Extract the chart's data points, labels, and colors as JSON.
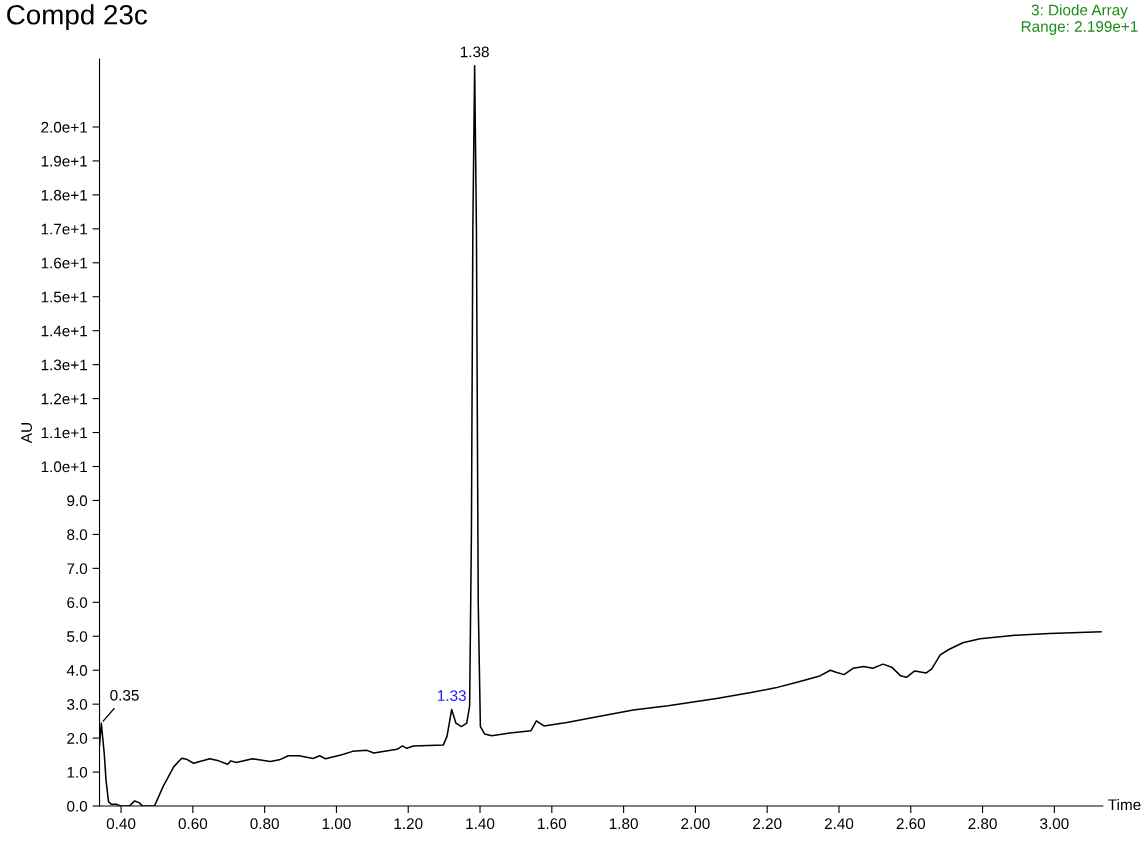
{
  "chart_data": {
    "type": "line",
    "title": "Compd 23c",
    "subtitle": "3: Diode Array\nRange: 2.199e+1",
    "xlabel": "Time",
    "ylabel": "AU",
    "series": [
      {
        "color": "#000000",
        "x": [
          0.34,
          0.345,
          0.353,
          0.358,
          0.365,
          0.373,
          0.388,
          0.398,
          0.423,
          0.438,
          0.45,
          0.46,
          0.493,
          0.517,
          0.547,
          0.569,
          0.582,
          0.602,
          0.647,
          0.672,
          0.697,
          0.706,
          0.721,
          0.766,
          0.816,
          0.841,
          0.866,
          0.896,
          0.935,
          0.953,
          0.97,
          1.015,
          1.045,
          1.085,
          1.104,
          1.169,
          1.184,
          1.196,
          1.214,
          1.298,
          1.308,
          1.321,
          1.333,
          1.348,
          1.363,
          1.371,
          1.376,
          1.38,
          1.385,
          1.39,
          1.395,
          1.401,
          1.413,
          1.433,
          1.483,
          1.542,
          1.557,
          1.578,
          1.642,
          1.73,
          1.827,
          1.924,
          2.059,
          2.155,
          2.223,
          2.291,
          2.344,
          2.376,
          2.392,
          2.414,
          2.44,
          2.469,
          2.494,
          2.523,
          2.547,
          2.571,
          2.588,
          2.611,
          2.643,
          2.658,
          2.682,
          2.706,
          2.745,
          2.793,
          2.89,
          2.986,
          3.13
        ],
        "values": [
          1.8,
          2.44,
          1.56,
          0.77,
          0.13,
          0.05,
          0.05,
          0,
          0,
          0.15,
          0.1,
          0,
          0,
          0.57,
          1.16,
          1.41,
          1.38,
          1.26,
          1.39,
          1.33,
          1.23,
          1.33,
          1.28,
          1.39,
          1.31,
          1.36,
          1.48,
          1.48,
          1.4,
          1.48,
          1.39,
          1.51,
          1.61,
          1.64,
          1.56,
          1.67,
          1.77,
          1.7,
          1.77,
          1.8,
          2.05,
          2.84,
          2.44,
          2.34,
          2.44,
          2.94,
          8.0,
          17.0,
          21.8,
          17.0,
          6.0,
          2.34,
          2.12,
          2.07,
          2.15,
          2.22,
          2.51,
          2.36,
          2.46,
          2.64,
          2.83,
          2.95,
          3.17,
          3.34,
          3.48,
          3.67,
          3.82,
          4.0,
          3.94,
          3.87,
          4.06,
          4.11,
          4.06,
          4.18,
          4.09,
          3.84,
          3.79,
          3.98,
          3.92,
          4.03,
          4.45,
          4.61,
          4.81,
          4.93,
          5.03,
          5.08,
          5.13
        ]
      }
    ],
    "xlim": [
      0.34,
      3.135
    ],
    "ylim": [
      0,
      22.0
    ],
    "xticks": [
      {
        "value": 0.4,
        "label": "0.40"
      },
      {
        "value": 0.6,
        "label": "0.60"
      },
      {
        "value": 0.8,
        "label": "0.80"
      },
      {
        "value": 1.0,
        "label": "1.00"
      },
      {
        "value": 1.2,
        "label": "1.20"
      },
      {
        "value": 1.4,
        "label": "1.40"
      },
      {
        "value": 1.6,
        "label": "1.60"
      },
      {
        "value": 1.8,
        "label": "1.80"
      },
      {
        "value": 2.0,
        "label": "2.00"
      },
      {
        "value": 2.2,
        "label": "2.20"
      },
      {
        "value": 2.4,
        "label": "2.40"
      },
      {
        "value": 2.6,
        "label": "2.60"
      },
      {
        "value": 2.8,
        "label": "2.80"
      },
      {
        "value": 3.0,
        "label": "3.00"
      }
    ],
    "yticks": [
      {
        "value": 0,
        "label": "0.0"
      },
      {
        "value": 1,
        "label": "1.0"
      },
      {
        "value": 2,
        "label": "2.0"
      },
      {
        "value": 3,
        "label": "3.0"
      },
      {
        "value": 4,
        "label": "4.0"
      },
      {
        "value": 5,
        "label": "5.0"
      },
      {
        "value": 6,
        "label": "6.0"
      },
      {
        "value": 7,
        "label": "7.0"
      },
      {
        "value": 8,
        "label": "8.0"
      },
      {
        "value": 9,
        "label": "9.0"
      },
      {
        "value": 10,
        "label": "1.0e+1"
      },
      {
        "value": 11,
        "label": "1.1e+1"
      },
      {
        "value": 12,
        "label": "1.2e+1"
      },
      {
        "value": 13,
        "label": "1.3e+1"
      },
      {
        "value": 14,
        "label": "1.4e+1"
      },
      {
        "value": 15,
        "label": "1.5e+1"
      },
      {
        "value": 16,
        "label": "1.6e+1"
      },
      {
        "value": 17,
        "label": "1.7e+1"
      },
      {
        "value": 18,
        "label": "1.8e+1"
      },
      {
        "value": 19,
        "label": "1.9e+1"
      },
      {
        "value": 20,
        "label": "2.0e+1"
      }
    ],
    "annotations": [
      {
        "text": "0.35",
        "x": 0.345,
        "y": 2.44
      },
      {
        "text": "1.33",
        "x": 1.321,
        "y": 2.84
      },
      {
        "text": "1.38",
        "x": 1.385,
        "y": 21.8
      }
    ],
    "grid": false,
    "legend": false,
    "marker": "none",
    "line_style": "solid"
  }
}
